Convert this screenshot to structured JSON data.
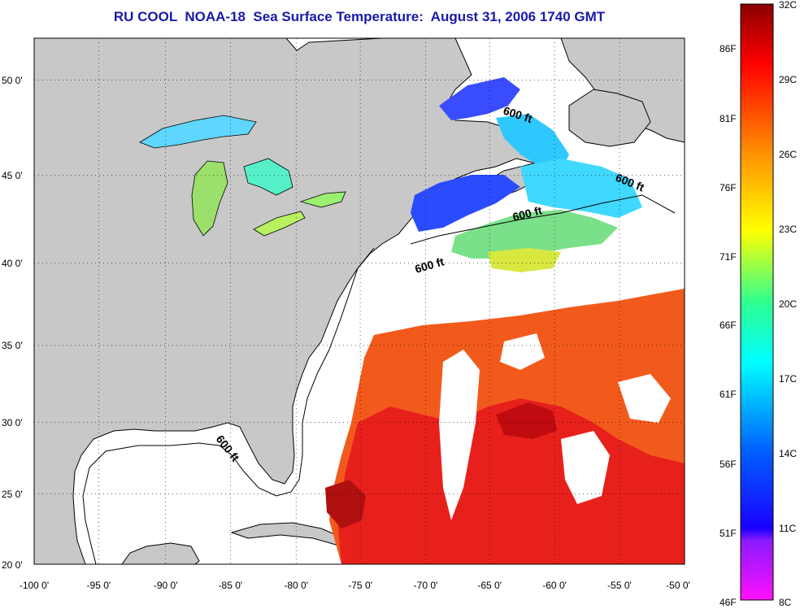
{
  "title": "RU COOL  NOAA-18  Sea Surface Temperature:  August 31, 2006 1740 GMT",
  "map": {
    "longitude_labels": [
      "-100 0'",
      "-95 0'",
      "-90 0'",
      "-85 0'",
      "-80 0'",
      "-75 0'",
      "-70 0'",
      "-65 0'",
      "-60 0'",
      "-55 0'",
      "-50 0'"
    ],
    "latitude_labels": [
      "50 0'",
      "45 0'",
      "40 0'",
      "35 0'",
      "30 0'",
      "25 0'",
      "20 0'"
    ],
    "isobath_labels": [
      "600 ft",
      "600 ft",
      "600 ft",
      "600 ft",
      "600 ft"
    ],
    "land_color": "#c8c8c8",
    "ocean_nodata_color": "#ffffff"
  },
  "colorbar": {
    "fahrenheit_labels": [
      "86F",
      "81F",
      "76F",
      "71F",
      "66F",
      "61F",
      "56F",
      "51F",
      "46F"
    ],
    "celsius_labels": [
      "32C",
      "29C",
      "26C",
      "23C",
      "20C",
      "17C",
      "14C",
      "11C",
      "8C"
    ],
    "palette": [
      "#ff00ff",
      "#8000ff",
      "#0000ff",
      "#0080ff",
      "#00ffff",
      "#00ff80",
      "#ffff00",
      "#ff8000",
      "#ff0000",
      "#800000"
    ]
  }
}
